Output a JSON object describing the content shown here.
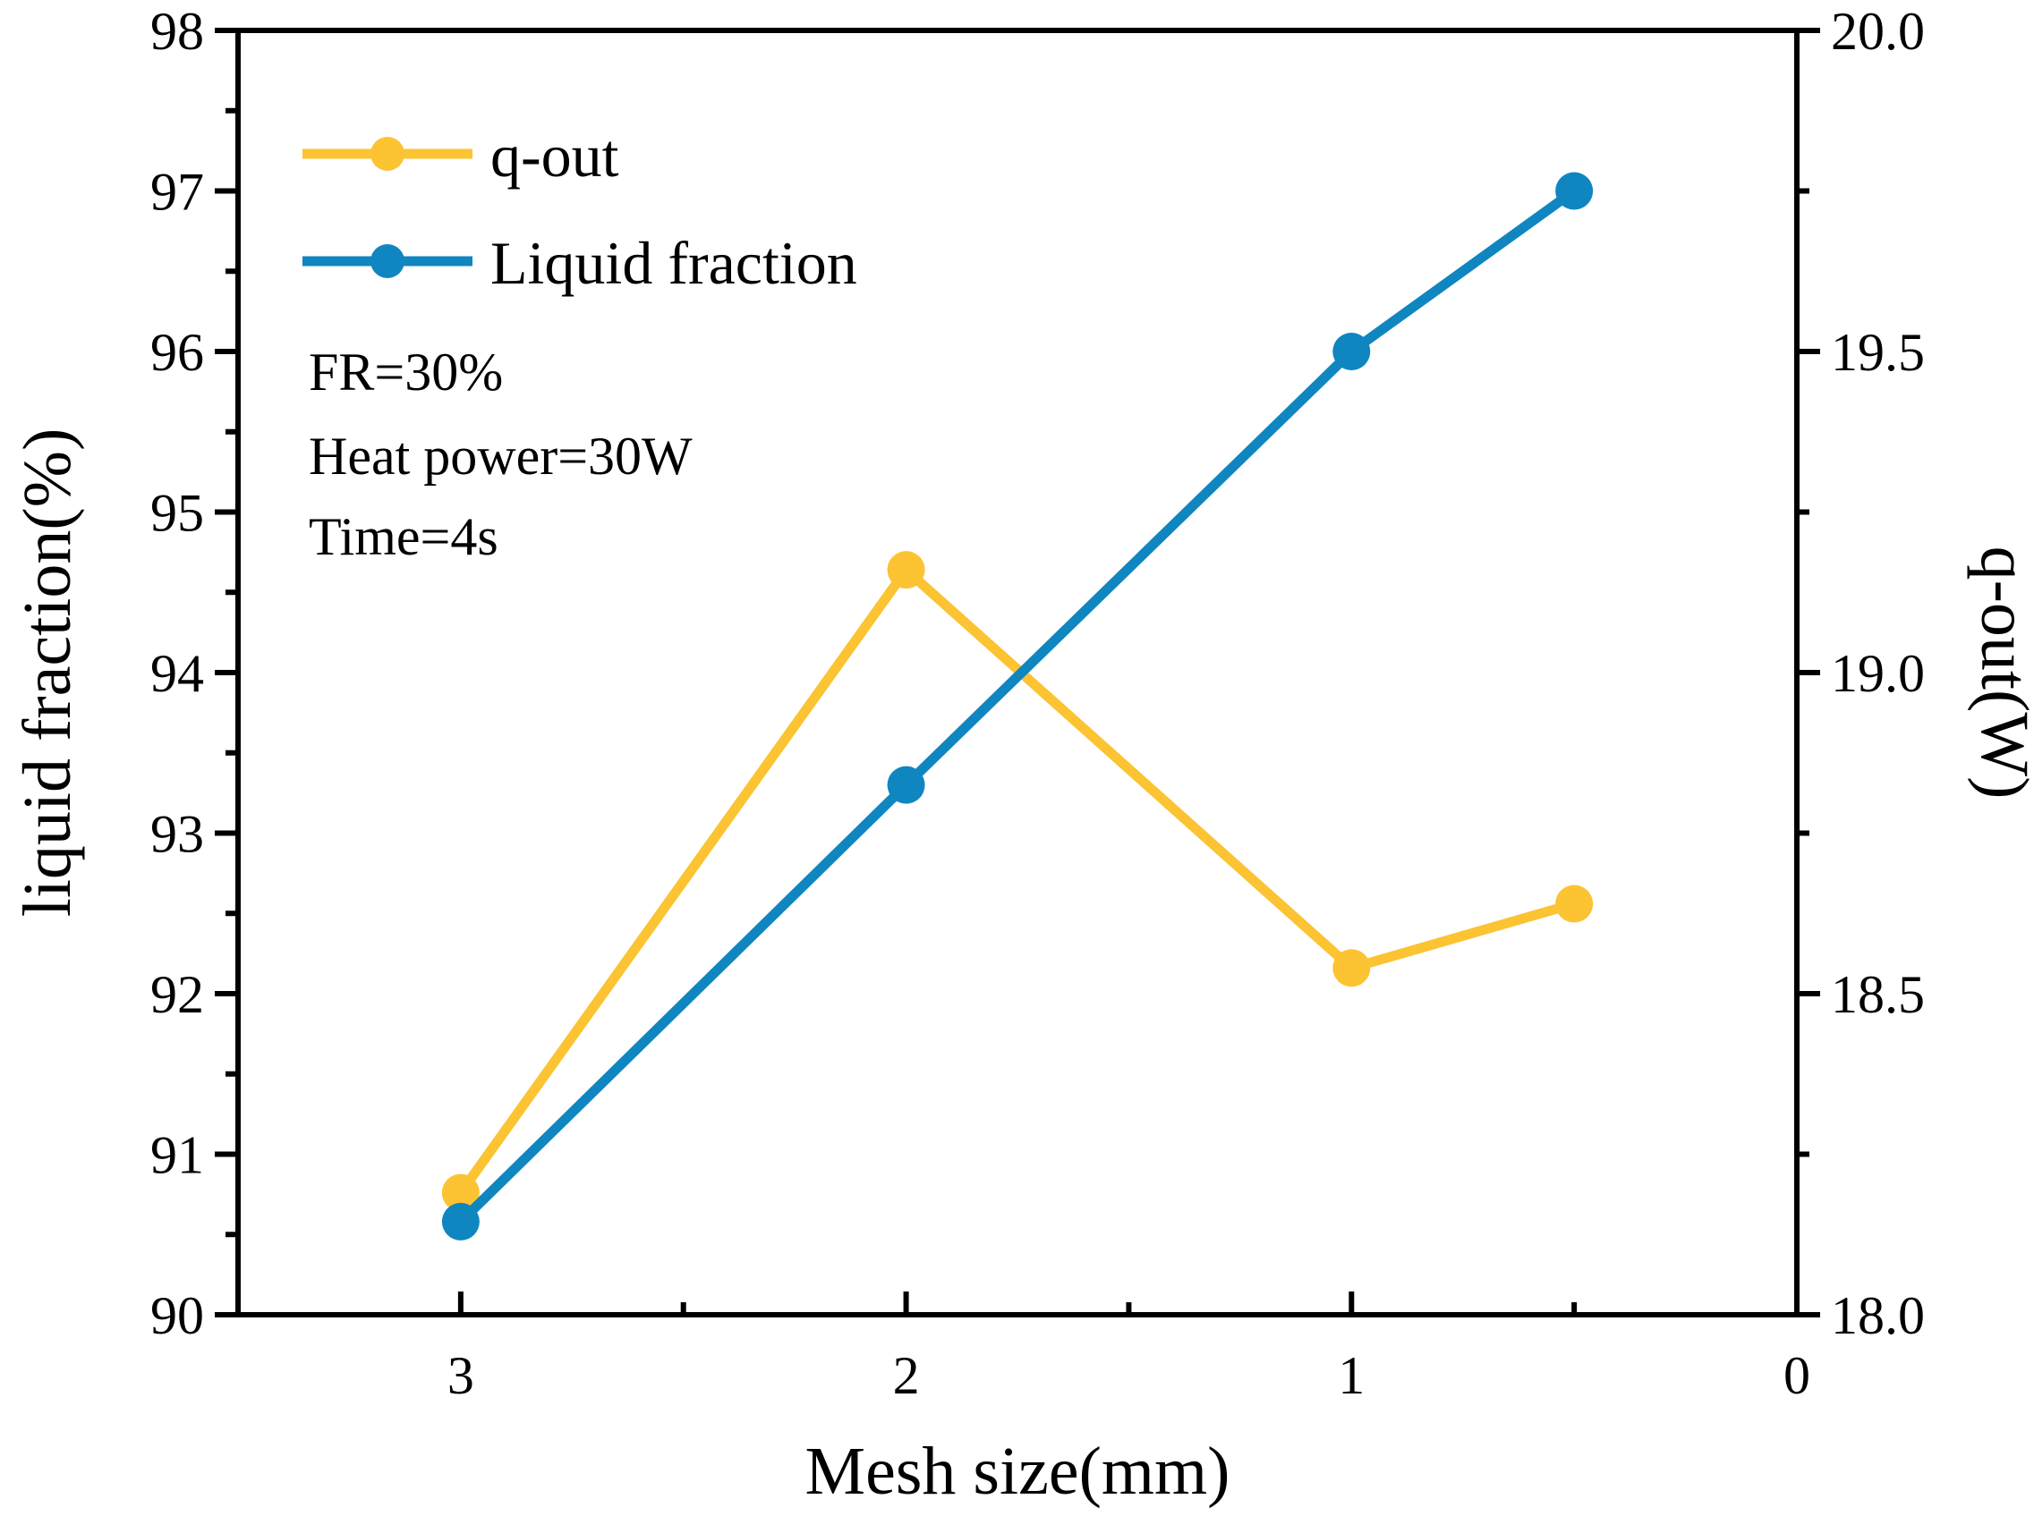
{
  "chart_data": {
    "type": "line",
    "x_axis": {
      "label": "Mesh size(mm)",
      "range": [
        3.5,
        0
      ],
      "reversed": true,
      "major_ticks": [
        3,
        2,
        1,
        0
      ],
      "minor_ticks": [
        2.5,
        1.5,
        0.5
      ],
      "tick_labels": [
        "3",
        "2",
        "1",
        "0"
      ]
    },
    "y_left": {
      "label": "liquid fraction(%)",
      "range": [
        90,
        98
      ],
      "major_ticks": [
        90,
        91,
        92,
        93,
        94,
        95,
        96,
        97,
        98
      ],
      "tick_labels": [
        "90",
        "91",
        "92",
        "93",
        "94",
        "95",
        "96",
        "97",
        "98"
      ]
    },
    "y_right": {
      "label": "q-out(W)",
      "range": [
        18.0,
        20.0
      ],
      "major_ticks": [
        18.0,
        18.5,
        19.0,
        19.5,
        20.0
      ],
      "tick_labels": [
        "18.0",
        "18.5",
        "19.0",
        "19.5",
        "20.0"
      ]
    },
    "series": [
      {
        "name": "q-out",
        "axis": "right",
        "color": "#FCC332",
        "x": [
          3,
          2,
          1,
          0.5
        ],
        "y": [
          18.19,
          19.16,
          18.54,
          18.64
        ]
      },
      {
        "name": "Liquid fraction",
        "axis": "left",
        "color": "#0F86C0",
        "x": [
          3,
          2,
          1,
          0.5
        ],
        "y": [
          90.58,
          93.3,
          96.0,
          97.0
        ]
      }
    ],
    "legend": {
      "position": "top-left",
      "entries": [
        "q-out",
        "Liquid fraction"
      ]
    },
    "annotations": [
      "FR=30%",
      "Heat power=30W",
      "Time=4s"
    ]
  }
}
